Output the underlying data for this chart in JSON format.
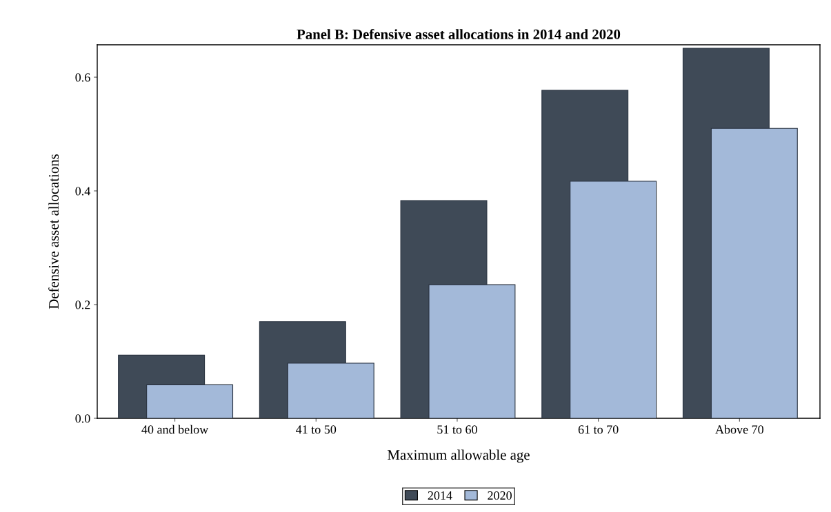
{
  "chart_data": {
    "type": "bar",
    "title": "Panel B: Defensive asset allocations in 2014 and 2020",
    "xlabel": "Maximum allowable age",
    "ylabel": "Defensive asset allocations",
    "categories": [
      "40 and below",
      "41 to 50",
      "51 to 60",
      "61 to 70",
      "Above 70"
    ],
    "series": [
      {
        "name": "2014",
        "color": "#3f4a57",
        "values": [
          0.111,
          0.17,
          0.383,
          0.577,
          0.651
        ]
      },
      {
        "name": "2020",
        "color": "#a3b9d9",
        "values": [
          0.059,
          0.097,
          0.235,
          0.417,
          0.51
        ]
      }
    ],
    "ylim": [
      0,
      0.657
    ],
    "yticks": [
      {
        "value": 0,
        "label": "0.0"
      },
      0.2,
      0.4,
      0.6
    ],
    "grid": false,
    "legend": "bottom"
  }
}
